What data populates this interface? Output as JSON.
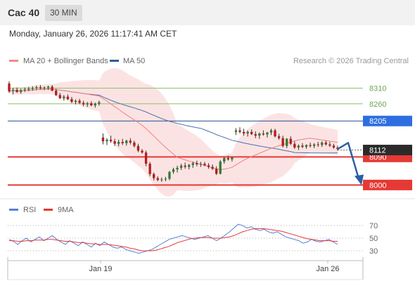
{
  "header": {
    "symbol": "Cac 40",
    "timeframe": "30 MIN"
  },
  "subheader": {
    "datetime": "Monday, January 26, 2026 11:17:41 AM CET"
  },
  "legend": [
    {
      "name": "MA 20 + Bollinger Bands",
      "color": "#f28b82"
    },
    {
      "name": "MA 50",
      "color": "#2f5e9e"
    }
  ],
  "copyright": "Research © 2026 Trading Central",
  "rsi_legend": [
    {
      "name": "RSI",
      "color": "#5b7fd6"
    },
    {
      "name": "9MA",
      "color": "#e53935"
    }
  ],
  "chart_data": [
    {
      "type": "candlestick",
      "ylim": [
        7985,
        8345
      ],
      "current_price": "8112",
      "levels": [
        {
          "value": 8310,
          "label": "8310",
          "color": "#8dc26a",
          "style": "thin"
        },
        {
          "value": 8260,
          "label": "8260",
          "color": "#8dc26a",
          "style": "thin"
        },
        {
          "value": 8205,
          "label": "8205",
          "color": "#1f4e8c",
          "style": "box"
        },
        {
          "value": 8090,
          "label": "8090",
          "color": "#e53935",
          "style": "box"
        },
        {
          "value": 8000,
          "label": "8000",
          "color": "#e53935",
          "style": "box"
        }
      ],
      "x_ticks": [
        "Jan 19",
        "Jan 26"
      ],
      "ohlc": [
        [
          8325,
          8332,
          8295,
          8300
        ],
        [
          8302,
          8310,
          8290,
          8305
        ],
        [
          8305,
          8312,
          8295,
          8298
        ],
        [
          8298,
          8308,
          8292,
          8304
        ],
        [
          8304,
          8312,
          8298,
          8306
        ],
        [
          8306,
          8314,
          8300,
          8308
        ],
        [
          8308,
          8316,
          8302,
          8310
        ],
        [
          8310,
          8318,
          8304,
          8313
        ],
        [
          8313,
          8320,
          8306,
          8310
        ],
        [
          8310,
          8316,
          8304,
          8312
        ],
        [
          8312,
          8318,
          8305,
          8315
        ],
        [
          8315,
          8320,
          8300,
          8302
        ],
        [
          8302,
          8308,
          8285,
          8288
        ],
        [
          8288,
          8295,
          8275,
          8278
        ],
        [
          8278,
          8288,
          8270,
          8283
        ],
        [
          8283,
          8290,
          8272,
          8275
        ],
        [
          8275,
          8282,
          8262,
          8266
        ],
        [
          8266,
          8274,
          8258,
          8270
        ],
        [
          8270,
          8276,
          8260,
          8263
        ],
        [
          8263,
          8270,
          8252,
          8258
        ],
        [
          8258,
          8266,
          8250,
          8262
        ],
        [
          8262,
          8268,
          8252,
          8255
        ],
        [
          8255,
          8264,
          8248,
          8260
        ],
        [
          8260,
          8270,
          8254,
          8265
        ],
        [
          8152,
          8165,
          8130,
          8140
        ],
        [
          8140,
          8150,
          8128,
          8145
        ],
        [
          8145,
          8158,
          8135,
          8140
        ],
        [
          8140,
          8148,
          8125,
          8132
        ],
        [
          8132,
          8145,
          8124,
          8138
        ],
        [
          8138,
          8148,
          8128,
          8134
        ],
        [
          8134,
          8145,
          8126,
          8142
        ],
        [
          8142,
          8150,
          8130,
          8136
        ],
        [
          8136,
          8142,
          8120,
          8125
        ],
        [
          8125,
          8132,
          8105,
          8110
        ],
        [
          8110,
          8115,
          8100,
          8104
        ],
        [
          8104,
          8110,
          8060,
          8068
        ],
        [
          8068,
          8074,
          8028,
          8035
        ],
        [
          8035,
          8040,
          8015,
          8022
        ],
        [
          8022,
          8028,
          8012,
          8016
        ],
        [
          8016,
          8024,
          8010,
          8018
        ],
        [
          8018,
          8026,
          8012,
          8020
        ],
        [
          8020,
          8045,
          8015,
          8042
        ],
        [
          8042,
          8055,
          8036,
          8050
        ],
        [
          8050,
          8062,
          8040,
          8055
        ],
        [
          8055,
          8068,
          8048,
          8062
        ],
        [
          8062,
          8072,
          8052,
          8058
        ],
        [
          8058,
          8068,
          8050,
          8064
        ],
        [
          8064,
          8075,
          8055,
          8070
        ],
        [
          8070,
          8078,
          8060,
          8066
        ],
        [
          8066,
          8074,
          8058,
          8068
        ],
        [
          8068,
          8074,
          8060,
          8063
        ],
        [
          8063,
          8070,
          8052,
          8058
        ],
        [
          8058,
          8066,
          8048,
          8052
        ],
        [
          8052,
          8060,
          8032,
          8036
        ],
        [
          8036,
          8080,
          8034,
          8075
        ],
        [
          8075,
          8090,
          8068,
          8086
        ],
        [
          8086,
          8094,
          8078,
          8082
        ],
        [
          8082,
          8090,
          8075,
          8088
        ],
        [
          8170,
          8182,
          8160,
          8175
        ],
        [
          8175,
          8185,
          8165,
          8170
        ],
        [
          8170,
          8180,
          8158,
          8165
        ],
        [
          8165,
          8175,
          8155,
          8170
        ],
        [
          8170,
          8178,
          8160,
          8163
        ],
        [
          8163,
          8172,
          8150,
          8158
        ],
        [
          8158,
          8168,
          8148,
          8165
        ],
        [
          8165,
          8175,
          8158,
          8162
        ],
        [
          8162,
          8170,
          8152,
          8168
        ],
        [
          8168,
          8180,
          8160,
          8175
        ],
        [
          8175,
          8180,
          8152,
          8156
        ],
        [
          8156,
          8164,
          8145,
          8150
        ],
        [
          8150,
          8158,
          8120,
          8125
        ],
        [
          8125,
          8150,
          8118,
          8148
        ],
        [
          8148,
          8156,
          8128,
          8132
        ],
        [
          8132,
          8140,
          8115,
          8120
        ],
        [
          8120,
          8130,
          8112,
          8126
        ],
        [
          8126,
          8134,
          8118,
          8122
        ],
        [
          8122,
          8130,
          8116,
          8128
        ],
        [
          8128,
          8136,
          8120,
          8125
        ],
        [
          8125,
          8134,
          8118,
          8130
        ],
        [
          8130,
          8138,
          8122,
          8128
        ],
        [
          8128,
          8140,
          8122,
          8136
        ],
        [
          8136,
          8142,
          8126,
          8130
        ],
        [
          8130,
          8138,
          8122,
          8126
        ],
        [
          8126,
          8132,
          8116,
          8120
        ],
        [
          8120,
          8126,
          8110,
          8115
        ]
      ]
    },
    {
      "type": "line",
      "ylim": [
        20,
        80
      ],
      "y_ticks": [
        70,
        50,
        30
      ],
      "series": [
        {
          "name": "RSI",
          "values": [
            48,
            45,
            40,
            46,
            50,
            44,
            48,
            52,
            46,
            50,
            54,
            48,
            44,
            40,
            46,
            42,
            38,
            44,
            40,
            36,
            42,
            38,
            44,
            40,
            36,
            34,
            36,
            32,
            30,
            28,
            26,
            28,
            30,
            32,
            36,
            40,
            44,
            48,
            50,
            52,
            54,
            52,
            50,
            48,
            50,
            52,
            54,
            50,
            46,
            50,
            55,
            60,
            66,
            72,
            70,
            66,
            68,
            64,
            62,
            64,
            60,
            58,
            60,
            56,
            52,
            50,
            48,
            46,
            42,
            44,
            48,
            45,
            44,
            46,
            48,
            44,
            40
          ]
        },
        {
          "name": "9MA",
          "values": [
            46,
            46,
            45,
            45,
            46,
            46,
            47,
            47,
            47,
            48,
            48,
            47,
            46,
            45,
            45,
            44,
            43,
            43,
            42,
            41,
            41,
            40,
            40,
            40,
            39,
            38,
            37,
            36,
            34,
            33,
            31,
            30,
            30,
            30,
            31,
            33,
            35,
            37,
            40,
            43,
            45,
            47,
            49,
            50,
            51,
            51,
            51,
            50,
            50,
            50,
            51,
            52,
            54,
            57,
            60,
            62,
            64,
            65,
            65,
            65,
            64,
            63,
            62,
            61,
            59,
            57,
            55,
            53,
            51,
            49,
            48,
            47,
            46,
            46,
            46,
            45,
            45
          ]
        }
      ]
    }
  ]
}
